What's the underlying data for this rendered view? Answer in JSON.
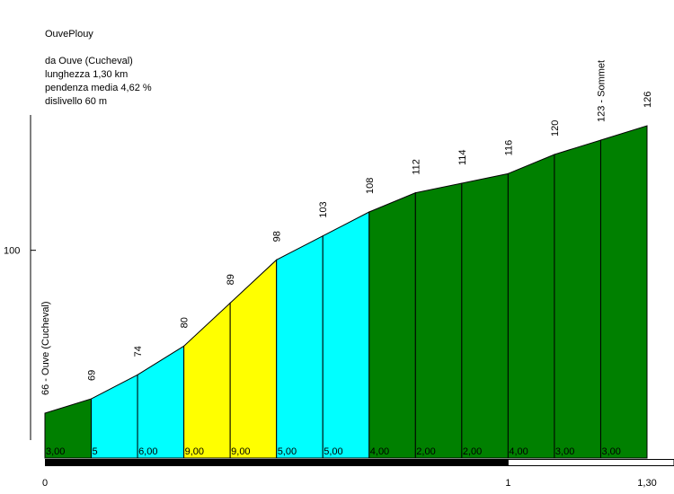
{
  "header": {
    "title": "OuvePlouy",
    "start": "da Ouve (Cucheval)",
    "length": "lunghezza 1,30 km",
    "avg_grade": "pendenza media 4,62 %",
    "elevation_gain": "dislivello 60 m"
  },
  "chart_data": {
    "type": "area",
    "title": "OuvePlouy",
    "x_unit": "km",
    "x": [
      0,
      0.1,
      0.2,
      0.3,
      0.4,
      0.5,
      0.6,
      0.7,
      0.8,
      0.9,
      1.0,
      1.1,
      1.2,
      1.3
    ],
    "y": [
      66,
      69,
      74,
      80,
      89,
      98,
      103,
      108,
      112,
      114,
      116,
      120,
      123,
      126
    ],
    "point_labels": [
      "66 - Ouve (Cucheval)",
      "69",
      "74",
      "80",
      "89",
      "98",
      "103",
      "108",
      "112",
      "114",
      "116",
      "120",
      "123 - Sommet",
      "126"
    ],
    "segment_grades": [
      "3,00",
      "5",
      "6,00",
      "9,00",
      "9,00",
      "5,00",
      "5,00",
      "4,00",
      "2,00",
      "2,00",
      "4,00",
      "3,00",
      "3,00"
    ],
    "segment_colors": [
      "#008000",
      "#00ffff",
      "#00ffff",
      "#ffff00",
      "#ffff00",
      "#00ffff",
      "#00ffff",
      "#008000",
      "#008000",
      "#008000",
      "#008000",
      "#008000",
      "#008000"
    ],
    "y_tick": {
      "value": 100,
      "label": "100"
    },
    "x_ticks": [
      {
        "value": 0,
        "label": "0"
      },
      {
        "value": 1,
        "label": "1"
      },
      {
        "value": 1.3,
        "label": "1,30"
      }
    ],
    "ylim": [
      56,
      137
    ],
    "xlim": [
      0,
      1.3
    ]
  }
}
